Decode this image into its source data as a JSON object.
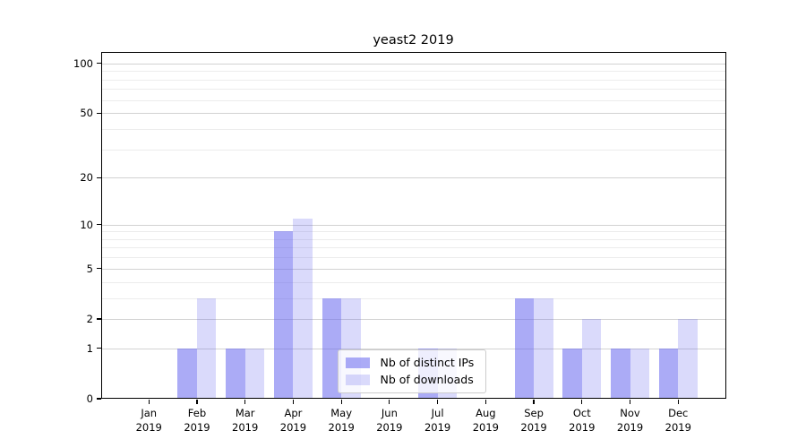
{
  "chart_data": {
    "type": "bar",
    "title": "yeast2 2019",
    "categories": [
      "Jan 2019",
      "Feb 2019",
      "Mar 2019",
      "Apr 2019",
      "May 2019",
      "Jun 2019",
      "Jul 2019",
      "Aug 2019",
      "Sep 2019",
      "Oct 2019",
      "Nov 2019",
      "Dec 2019"
    ],
    "series": [
      {
        "name": "Nb of distinct IPs",
        "color": "#6666ee",
        "alpha": 0.55,
        "values": [
          0,
          1,
          1,
          9,
          3,
          0,
          1,
          0,
          3,
          1,
          1,
          1
        ]
      },
      {
        "name": "Nb of downloads",
        "color": "#6666ee",
        "alpha": 0.24,
        "values": [
          0,
          3,
          1,
          11,
          3,
          0,
          1,
          0,
          3,
          2,
          1,
          2
        ]
      }
    ],
    "xlabel": "",
    "ylabel": "",
    "yscale": "log1p",
    "ylim": [
      0,
      117.4
    ],
    "yticks": [
      0,
      1,
      2,
      5,
      10,
      20,
      50,
      100
    ],
    "minor_gridlines": [
      3,
      4,
      6,
      7,
      8,
      9,
      30,
      40,
      60,
      70,
      80,
      90
    ],
    "grid": true,
    "legend_position": "lower-center"
  }
}
